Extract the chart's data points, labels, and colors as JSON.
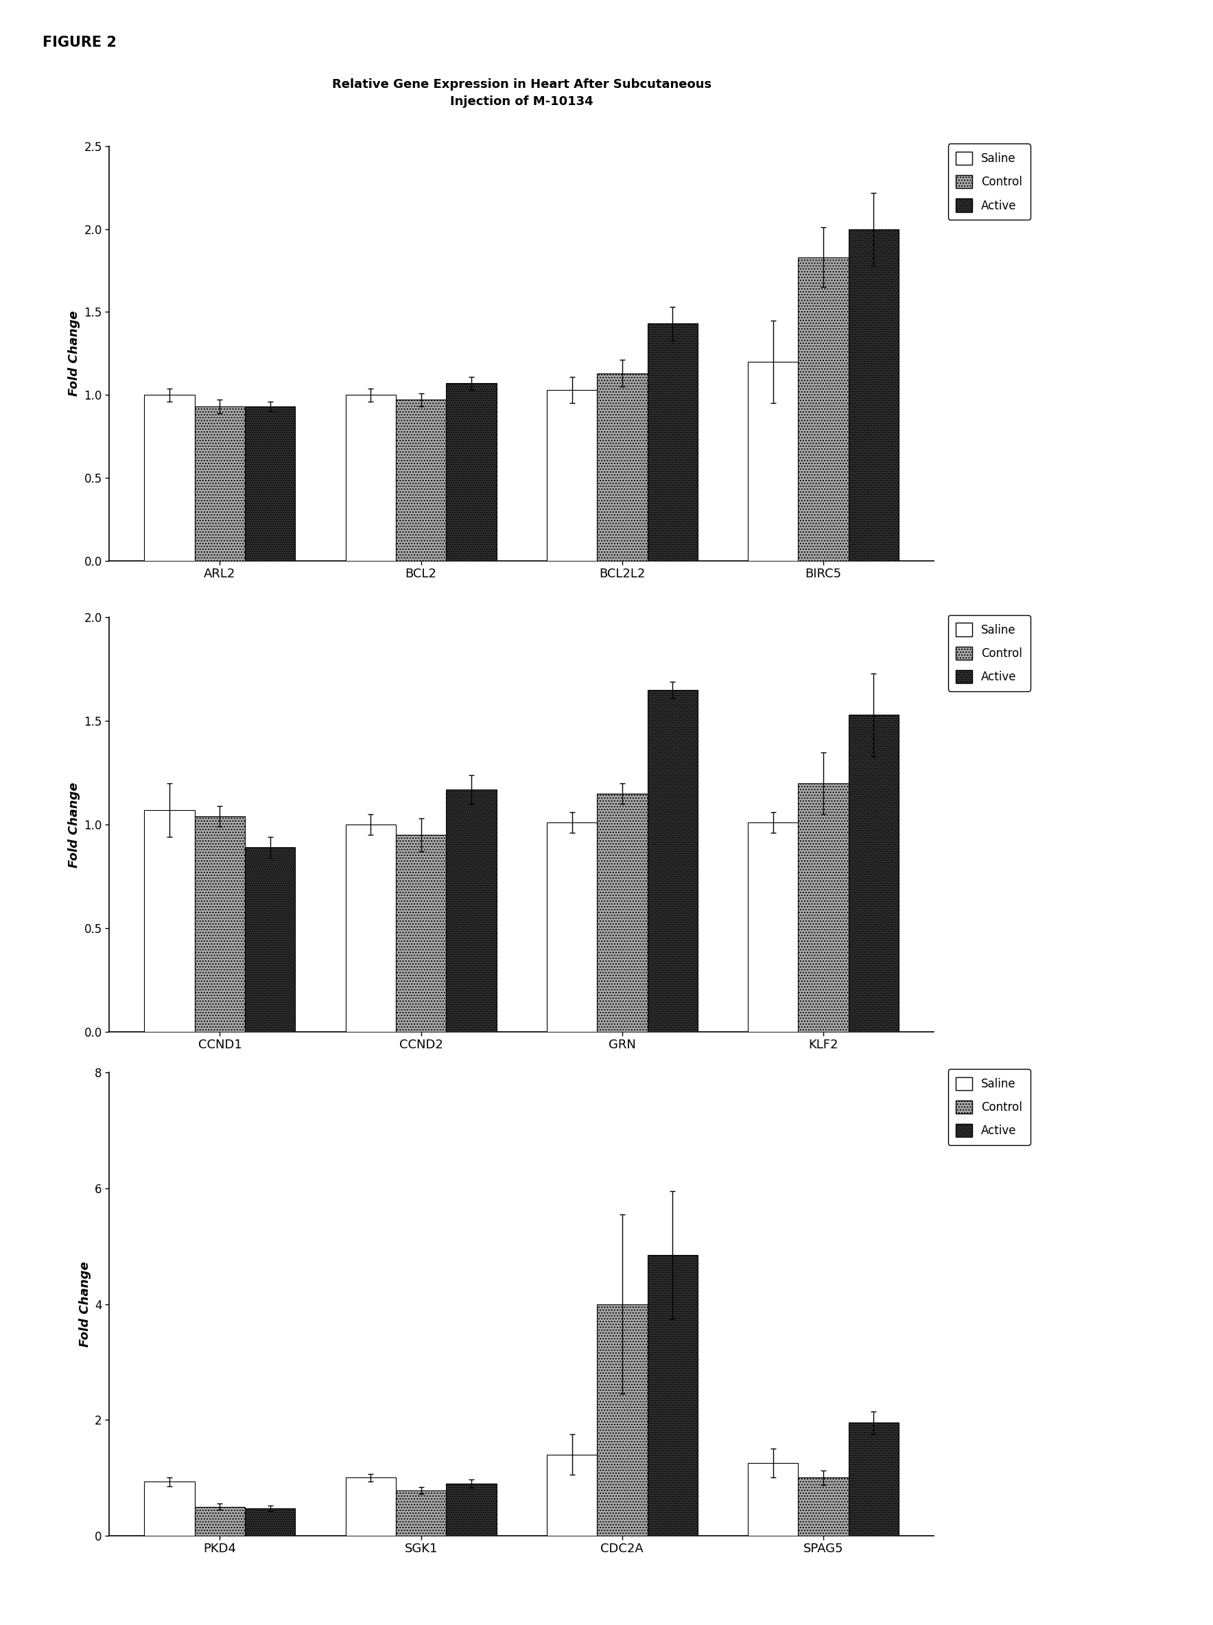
{
  "figure_label": "FIGURE 2",
  "title": "Relative Gene Expression in Heart After Subcutaneous\nInjection of M-10134",
  "ylabel": "Fold Change",
  "subplot1": {
    "genes": [
      "ARL2",
      "BCL2",
      "BCL2L2",
      "BIRC5"
    ],
    "saline": [
      1.0,
      1.0,
      1.03,
      1.2
    ],
    "control": [
      0.93,
      0.97,
      1.13,
      1.83
    ],
    "active": [
      0.93,
      1.07,
      1.43,
      2.0
    ],
    "saline_err": [
      0.04,
      0.04,
      0.08,
      0.25
    ],
    "control_err": [
      0.04,
      0.04,
      0.08,
      0.18
    ],
    "active_err": [
      0.03,
      0.04,
      0.1,
      0.22
    ],
    "ylim": [
      0.0,
      2.5
    ],
    "yticks": [
      0.0,
      0.5,
      1.0,
      1.5,
      2.0,
      2.5
    ]
  },
  "subplot2": {
    "genes": [
      "CCND1",
      "CCND2",
      "GRN",
      "KLF2"
    ],
    "saline": [
      1.07,
      1.0,
      1.01,
      1.01
    ],
    "control": [
      1.04,
      0.95,
      1.15,
      1.2
    ],
    "active": [
      0.89,
      1.17,
      1.65,
      1.53
    ],
    "saline_err": [
      0.13,
      0.05,
      0.05,
      0.05
    ],
    "control_err": [
      0.05,
      0.08,
      0.05,
      0.15
    ],
    "active_err": [
      0.05,
      0.07,
      0.04,
      0.2
    ],
    "ylim": [
      0.0,
      2.0
    ],
    "yticks": [
      0.0,
      0.5,
      1.0,
      1.5,
      2.0
    ]
  },
  "subplot3": {
    "genes": [
      "PKD4",
      "SGK1",
      "CDC2A",
      "SPAG5"
    ],
    "saline": [
      0.93,
      1.0,
      1.4,
      1.25
    ],
    "control": [
      0.5,
      0.78,
      4.0,
      1.0
    ],
    "active": [
      0.47,
      0.9,
      4.85,
      1.95
    ],
    "saline_err": [
      0.08,
      0.07,
      0.35,
      0.25
    ],
    "control_err": [
      0.05,
      0.06,
      1.55,
      0.12
    ],
    "active_err": [
      0.05,
      0.07,
      1.1,
      0.2
    ],
    "ylim": [
      0.0,
      8.0
    ],
    "yticks": [
      0,
      2,
      4,
      6,
      8
    ]
  },
  "colors": {
    "saline": "#ffffff",
    "control": "#aaaaaa",
    "active": "#333333"
  },
  "edgecolor": "#000000",
  "bar_width": 0.25,
  "legend_labels": [
    "Saline",
    "Control",
    "Active"
  ],
  "hatch_control": "....",
  "hatch_active": ".....",
  "hatch_saline": ""
}
